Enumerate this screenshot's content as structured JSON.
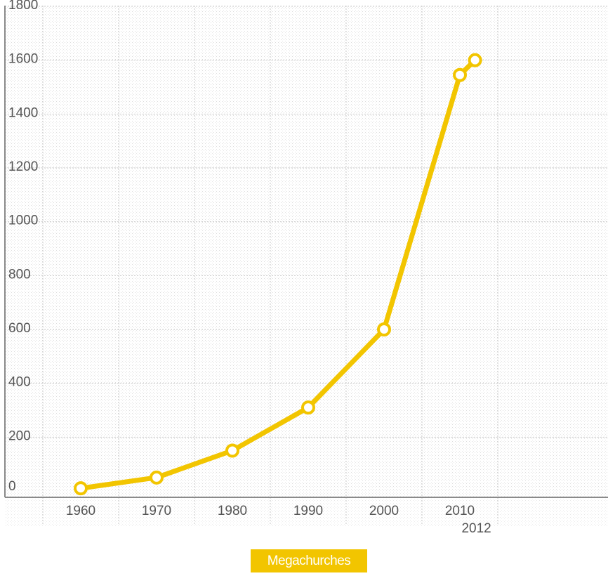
{
  "chart_data": {
    "type": "line",
    "title": "",
    "xlabel": "",
    "ylabel": "",
    "x": [
      1960,
      1970,
      1980,
      1990,
      2000,
      2010,
      2012
    ],
    "x_tick_labels": [
      "1960",
      "1970",
      "1980",
      "1990",
      "2000",
      "2010",
      "2012"
    ],
    "y_tick_labels": [
      "0",
      "200",
      "400",
      "600",
      "800",
      "1000",
      "1200",
      "1400",
      "1600",
      "1800"
    ],
    "y_ticks": [
      0,
      200,
      400,
      600,
      800,
      1000,
      1200,
      1400,
      1600,
      1800
    ],
    "ylim": [
      0,
      1800
    ],
    "xlim": [
      1960,
      2020
    ],
    "grid": true,
    "legend_placement": "bottom-center",
    "series": [
      {
        "name": "Megachurches",
        "values": [
          10,
          50,
          150,
          310,
          600,
          1545,
          1600
        ],
        "color": "#f2c500"
      }
    ]
  },
  "legend": {
    "label": "Megachurches",
    "color": "#f2c500"
  }
}
